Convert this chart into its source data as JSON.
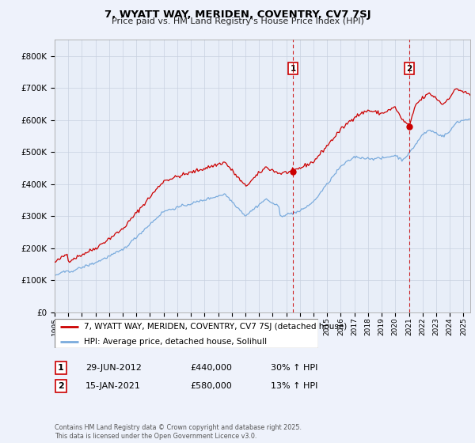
{
  "title": "7, WYATT WAY, MERIDEN, COVENTRY, CV7 7SJ",
  "subtitle": "Price paid vs. HM Land Registry's House Price Index (HPI)",
  "red_label": "7, WYATT WAY, MERIDEN, COVENTRY, CV7 7SJ (detached house)",
  "blue_label": "HPI: Average price, detached house, Solihull",
  "marker1_date": 2012.5,
  "marker1_price": 440000,
  "marker1_text": "29-JUN-2012",
  "marker1_pct": "30% ↑ HPI",
  "marker2_date": 2021.04,
  "marker2_price": 580000,
  "marker2_text": "15-JAN-2021",
  "marker2_pct": "13% ↑ HPI",
  "footnote": "Contains HM Land Registry data © Crown copyright and database right 2025.\nThis data is licensed under the Open Government Licence v3.0.",
  "ylim": [
    0,
    850000
  ],
  "xlim_start": 1995,
  "xlim_end": 2025.5,
  "background_color": "#eef2fb",
  "plot_bg_color": "#e8eef8",
  "red_color": "#cc0000",
  "blue_color": "#7aabdd",
  "grid_color": "#c8d0e0"
}
